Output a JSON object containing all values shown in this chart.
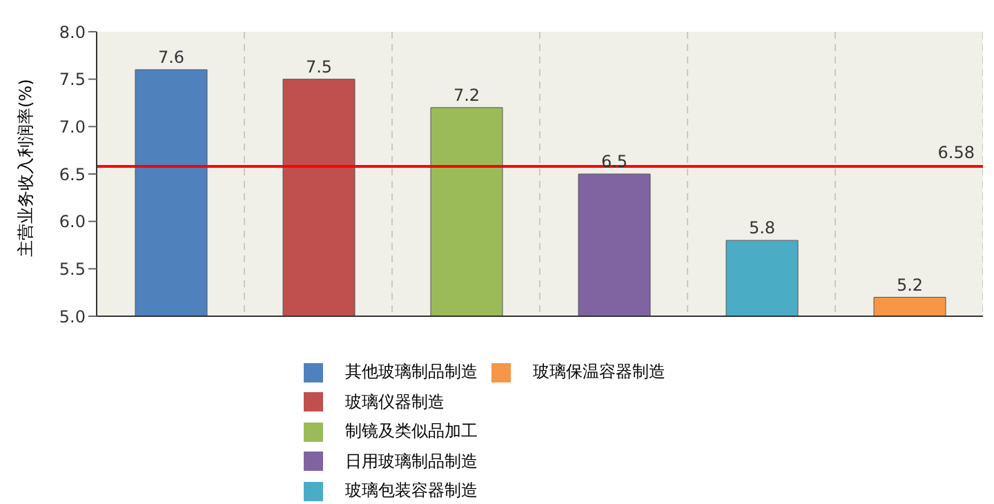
{
  "chart_data": {
    "type": "bar",
    "ylabel": "主营业务收入利润率(%)",
    "categories": [
      null,
      null,
      null,
      null,
      null,
      null
    ],
    "series": [
      {
        "name": "其他玻璃制品制造",
        "color": "#4f81bd",
        "values": [
          7.6,
          null,
          null,
          null,
          null,
          null
        ]
      },
      {
        "name": "玻璃仪器制造",
        "color": "#c0504d",
        "values": [
          null,
          7.5,
          null,
          null,
          null,
          null
        ]
      },
      {
        "name": "制镜及类似品加工",
        "color": "#9bbb59",
        "values": [
          null,
          null,
          7.2,
          null,
          null,
          null
        ]
      },
      {
        "name": "日用玻璃制品制造",
        "color": "#8064a2",
        "values": [
          null,
          null,
          null,
          6.5,
          null,
          null
        ]
      },
      {
        "name": "玻璃包装容器制造",
        "color": "#4bacc6",
        "values": [
          null,
          null,
          null,
          null,
          5.8,
          null
        ]
      },
      {
        "name": "玻璃保温容器制造",
        "color": "#f79646",
        "values": [
          null,
          null,
          null,
          null,
          null,
          5.2
        ]
      }
    ],
    "stacked": true,
    "ylim": [
      5,
      8
    ],
    "yticks": [
      {
        "value": 5,
        "label": "5.0"
      },
      {
        "value": 5.5,
        "label": "5.5"
      },
      {
        "value": 6,
        "label": "6.0"
      },
      {
        "value": 6.5,
        "label": "6.5"
      },
      {
        "value": 7,
        "label": "7.0"
      },
      {
        "value": 7.5,
        "label": "7.5"
      },
      {
        "value": 8,
        "label": "8.0"
      }
    ],
    "ref_lines": [
      {
        "axis": "y",
        "value": 6.58,
        "label": "6.58",
        "color": "#ff0000"
      }
    ],
    "data_labels": true,
    "grid": "x",
    "legend": "bottom",
    "tick_labels": "y"
  }
}
